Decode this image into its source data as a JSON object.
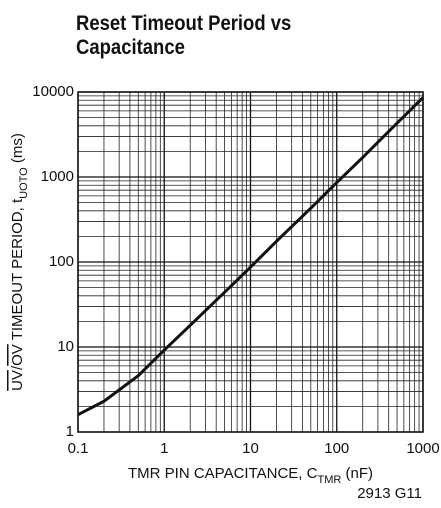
{
  "chart_data": {
    "type": "line",
    "title": "Reset Timeout Period vs Capacitance",
    "xlabel": [
      "TMR PIN CAPACITANCE, C",
      "TMR",
      " (nF)"
    ],
    "ylabel": [
      "UV",
      "/",
      "OV",
      " TIMEOUT PERIOD, t",
      "UOTO",
      " (ms)"
    ],
    "footnote": "2913 G11",
    "xlog": true,
    "ylog": true,
    "grid": true,
    "xlim": [
      0.1,
      1000
    ],
    "ylim": [
      1,
      10000
    ],
    "xticks": [
      0.1,
      1,
      10,
      100,
      1000
    ],
    "yticks": [
      1,
      10,
      100,
      1000,
      10000
    ],
    "x": [
      0.1,
      0.2,
      0.5,
      1,
      2,
      5,
      10,
      20,
      50,
      100,
      200,
      500,
      1000
    ],
    "series": [
      {
        "name": "tUOTO",
        "color": "#111111",
        "values": [
          1.6,
          2.3,
          4.6,
          9.2,
          18,
          44,
          87,
          175,
          430,
          860,
          1700,
          4300,
          8600
        ]
      }
    ]
  }
}
